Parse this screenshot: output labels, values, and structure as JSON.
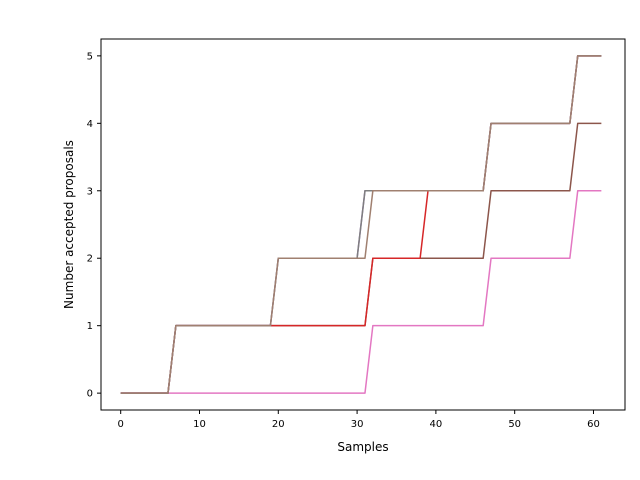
{
  "chart_data": {
    "type": "line",
    "title": "",
    "xlabel": "Samples",
    "ylabel": "Number accepted proposals",
    "xlim": [
      -2.5,
      64
    ],
    "ylim": [
      -0.25,
      5.25
    ],
    "xticks": [
      0,
      10,
      20,
      30,
      40,
      50,
      60
    ],
    "yticks": [
      0,
      1,
      2,
      3,
      4,
      5
    ],
    "grid": false,
    "legend": "none",
    "series": [
      {
        "color": "#e377c2",
        "points": [
          [
            0,
            0
          ],
          [
            31,
            0
          ],
          [
            32,
            1
          ],
          [
            46,
            1
          ],
          [
            47,
            2
          ],
          [
            57,
            2
          ],
          [
            58,
            3
          ],
          [
            61,
            3
          ]
        ]
      },
      {
        "color": "#8c564b",
        "points": [
          [
            0,
            0
          ],
          [
            6,
            0
          ],
          [
            7,
            1
          ],
          [
            31,
            1
          ],
          [
            32,
            2
          ],
          [
            46,
            2
          ],
          [
            47,
            3
          ],
          [
            57,
            3
          ],
          [
            58,
            4
          ],
          [
            61,
            4
          ]
        ]
      },
      {
        "color": "#d62728",
        "points": [
          [
            0,
            0
          ],
          [
            6,
            0
          ],
          [
            7,
            1
          ],
          [
            31,
            1
          ],
          [
            32,
            2
          ],
          [
            38,
            2
          ],
          [
            39,
            3
          ],
          [
            46,
            3
          ],
          [
            47,
            4
          ],
          [
            57,
            4
          ],
          [
            58,
            5
          ],
          [
            61,
            5
          ]
        ]
      },
      {
        "color": "#9467bd",
        "points": [
          [
            0,
            0
          ],
          [
            6,
            0
          ],
          [
            7,
            1
          ],
          [
            19,
            1
          ],
          [
            20,
            2
          ],
          [
            30,
            2
          ],
          [
            31,
            3
          ],
          [
            46,
            3
          ],
          [
            47,
            4
          ],
          [
            57,
            4
          ],
          [
            58,
            5
          ],
          [
            61,
            5
          ]
        ]
      },
      {
        "color": "#7f7f7f",
        "points": [
          [
            0,
            0
          ],
          [
            6,
            0
          ],
          [
            7,
            1
          ],
          [
            19,
            1
          ],
          [
            20,
            2
          ],
          [
            30,
            2
          ],
          [
            31,
            3
          ],
          [
            46,
            3
          ],
          [
            47,
            4
          ],
          [
            57,
            4
          ],
          [
            58,
            5
          ],
          [
            61,
            5
          ]
        ]
      },
      {
        "color": "#a08070",
        "points": [
          [
            0,
            0
          ],
          [
            6,
            0
          ],
          [
            7,
            1
          ],
          [
            19,
            1
          ],
          [
            20,
            2
          ],
          [
            31,
            2
          ],
          [
            32,
            3
          ],
          [
            46,
            3
          ],
          [
            47,
            4
          ],
          [
            57,
            4
          ],
          [
            58,
            5
          ],
          [
            61,
            5
          ]
        ]
      }
    ]
  }
}
